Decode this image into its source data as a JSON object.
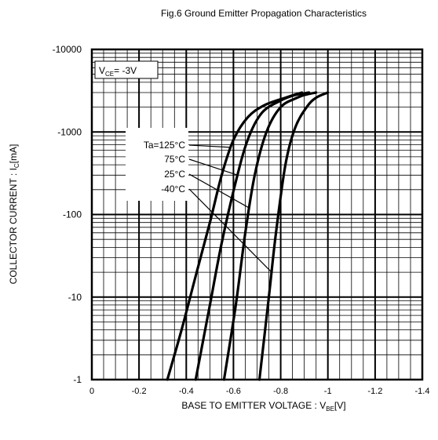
{
  "chart_data": {
    "type": "line",
    "title": "Fig.6 Ground Emitter Propagation Characteristics",
    "xlabel": {
      "main": "BASE TO EMITTER VOLTAGE : V",
      "sub": "BE",
      "unit": "[V]"
    },
    "ylabel": {
      "main": "COLLECTOR CURRENT : I",
      "sub": "C",
      "unit": "[mA]"
    },
    "x_scale": "linear",
    "y_scale": "log",
    "xlim": [
      0,
      -1.4
    ],
    "ylim": [
      -1,
      -10000
    ],
    "x_ticks": [
      "0",
      "-0.2",
      "-0.4",
      "-0.6",
      "-0.8",
      "-1",
      "-1.2",
      "-1.4"
    ],
    "y_ticks": [
      "-1",
      "-10",
      "-100",
      "-1000",
      "-10000"
    ],
    "grid": true,
    "condition": {
      "main": "V",
      "sub": "CE",
      "rest": "= -3V"
    },
    "series": [
      {
        "name": "Ta=125°C",
        "x": [
          -0.32,
          -0.38,
          -0.44,
          -0.5,
          -0.55,
          -0.6,
          -0.66,
          -0.73,
          -0.82,
          -0.89
        ],
        "y": [
          -1,
          -4,
          -18,
          -80,
          -300,
          -800,
          -1500,
          -2100,
          -2600,
          -3000
        ]
      },
      {
        "name": "75°C",
        "x": [
          -0.44,
          -0.5,
          -0.55,
          -0.61,
          -0.66,
          -0.72,
          -0.8,
          -0.86,
          -0.92
        ],
        "y": [
          -1,
          -8,
          -45,
          -250,
          -800,
          -1700,
          -2400,
          -2800,
          -3000
        ]
      },
      {
        "name": "25°C",
        "x": [
          -0.56,
          -0.61,
          -0.65,
          -0.69,
          -0.74,
          -0.8,
          -0.87,
          -0.91,
          -0.95
        ],
        "y": [
          -1,
          -8,
          -60,
          -300,
          -1000,
          -2000,
          -2600,
          -2850,
          -3000
        ]
      },
      {
        "name": "-40°C",
        "x": [
          -0.71,
          -0.75,
          -0.78,
          -0.82,
          -0.86,
          -0.91,
          -0.95,
          -1.0
        ],
        "y": [
          -1,
          -10,
          -60,
          -400,
          -1100,
          -2000,
          -2600,
          -3000
        ]
      }
    ]
  }
}
